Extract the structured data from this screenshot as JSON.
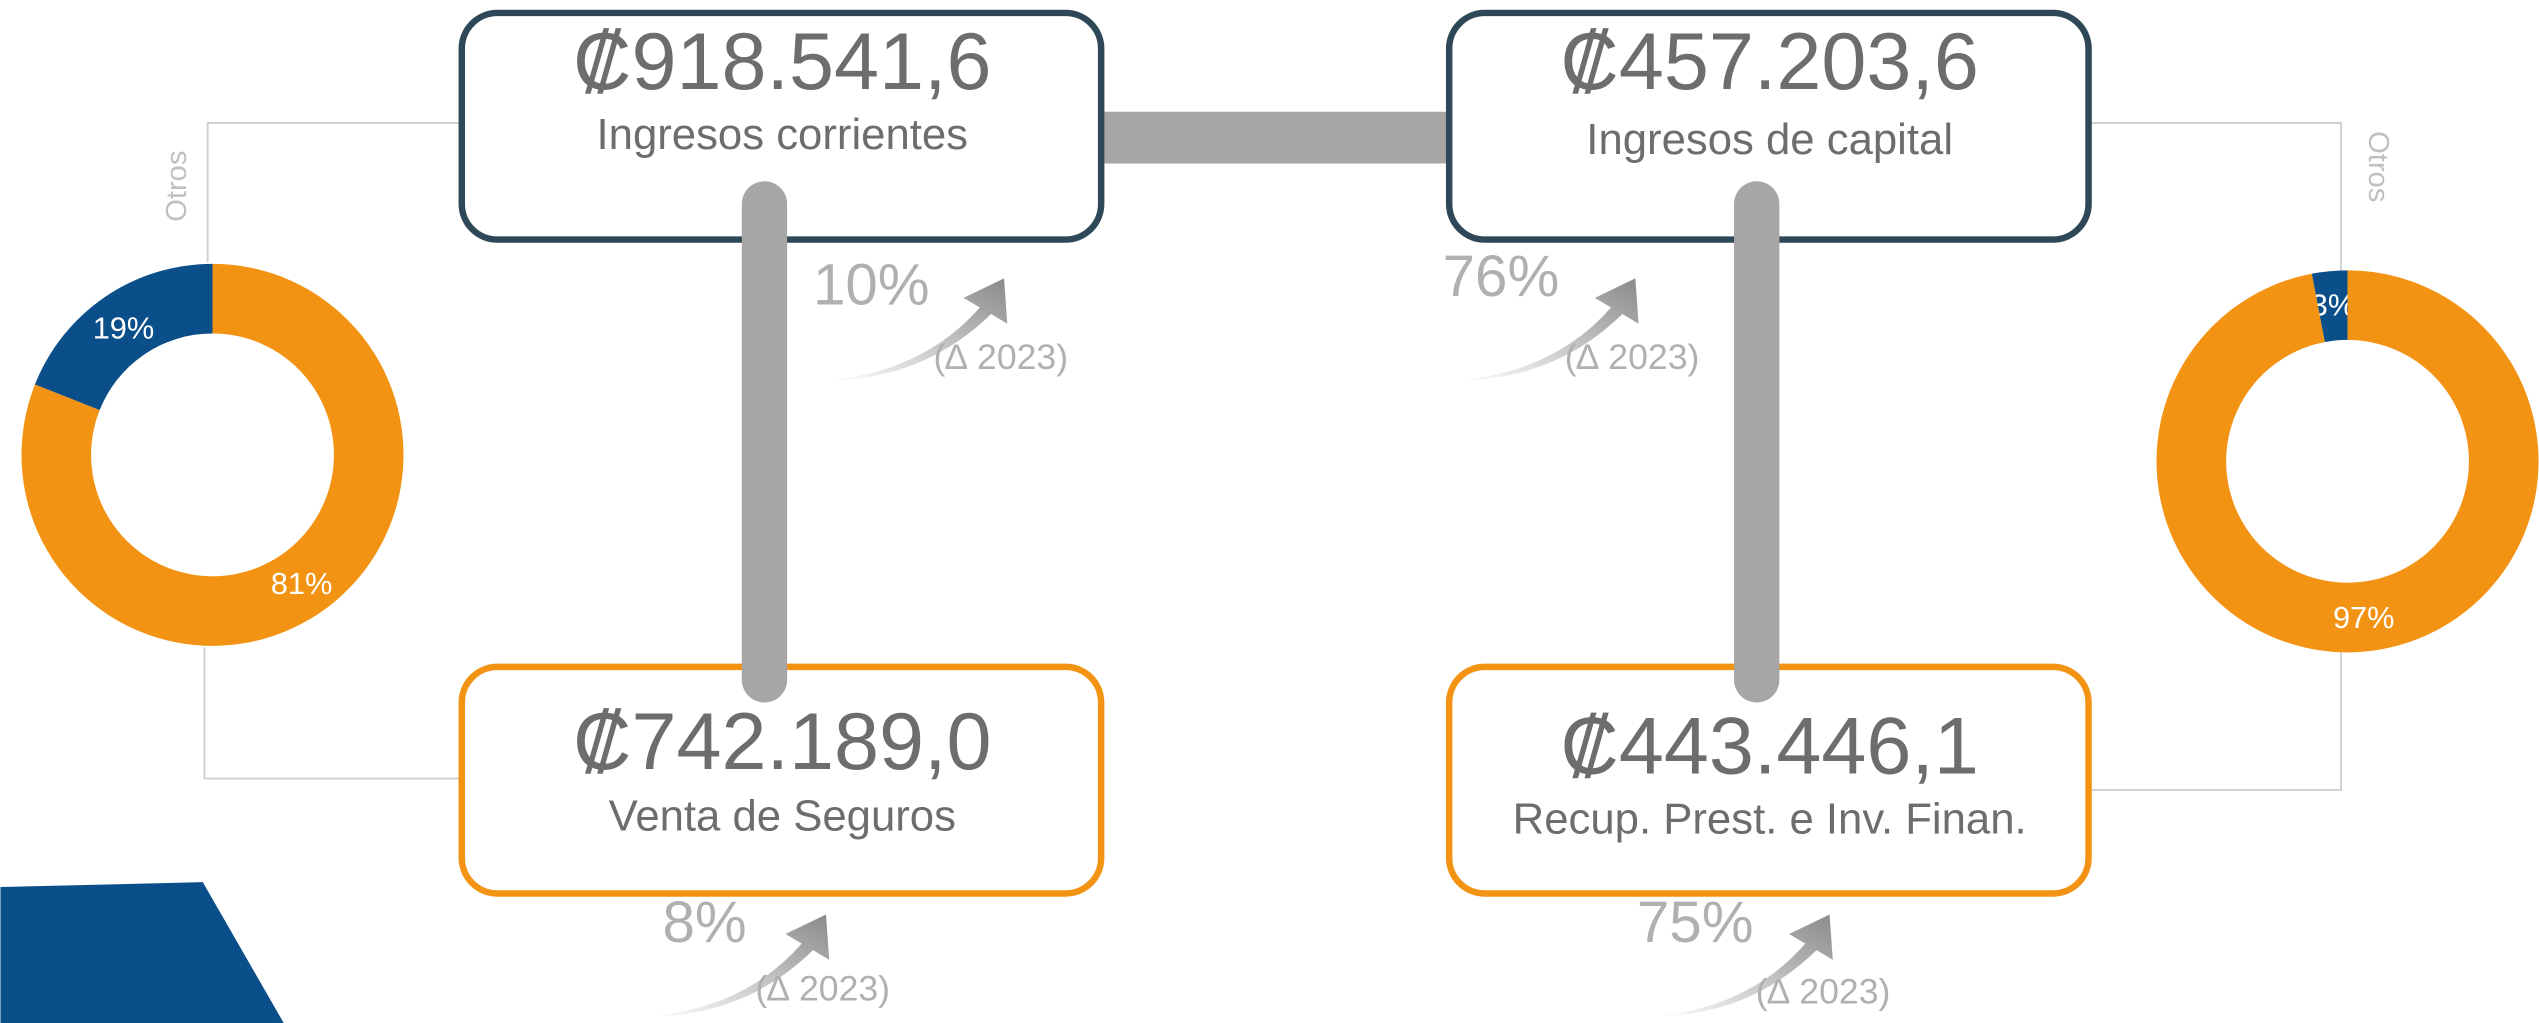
{
  "boxes": [
    {
      "amount": "₡918.541,6",
      "label": "Ingresos corrientes",
      "change": "10%",
      "period": "(∆ 2023)"
    },
    {
      "amount": "₡457.203,6",
      "label": "Ingresos de capital",
      "change": "76%",
      "period": "(∆ 2023)"
    },
    {
      "amount": "₡742.189,0",
      "label": "Venta de Seguros",
      "change": "8%",
      "period": "(∆ 2023)"
    },
    {
      "amount": "₡443.446,1",
      "label": "Recup. Prest. e Inv. Finan.",
      "change": "75%",
      "period": "(∆ 2023)"
    }
  ],
  "chart_data": [
    {
      "type": "pie",
      "donut": true,
      "categories": [
        "Otros",
        null
      ],
      "values": [
        19,
        81
      ],
      "value_labels": [
        "19%",
        "81%"
      ],
      "colors": [
        "#0b4f8a",
        "#f39314"
      ]
    },
    {
      "type": "pie",
      "donut": true,
      "categories": [
        "Otros",
        null
      ],
      "values": [
        3,
        97
      ],
      "value_labels": [
        "3%",
        "97%"
      ],
      "colors": [
        "#0b4f8a",
        "#f39314"
      ]
    }
  ]
}
